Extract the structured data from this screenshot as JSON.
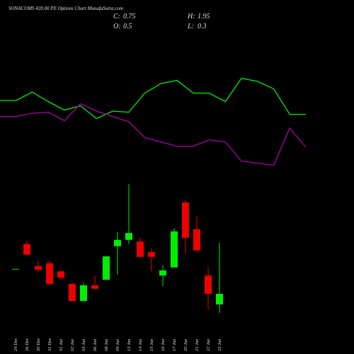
{
  "chart_data": [
    {
      "type": "line",
      "ylim": [
        0,
        100
      ],
      "series": [
        {
          "color": "#00ee00",
          "values": [
            72,
            72,
            80,
            71,
            63,
            67,
            55,
            62,
            61,
            79,
            88,
            91,
            79,
            79,
            71,
            93,
            90,
            83,
            59,
            59
          ]
        },
        {
          "color": "#aa00aa",
          "values": [
            57,
            57,
            60,
            61,
            53,
            69,
            62,
            57,
            52,
            37,
            33,
            29,
            29,
            35,
            33,
            15,
            13,
            11,
            46,
            28
          ]
        }
      ]
    },
    {
      "type": "candlestick",
      "title": "SONACOMS 420.00 PE Options Chart MunafaSutra.com",
      "ohlc_labels": [
        {
          "label": "C:",
          "value": 0.75
        },
        {
          "label": "H:",
          "value": 1.95
        },
        {
          "label": "O:",
          "value": 0.5
        },
        {
          "label": "L:",
          "value": 0.3
        }
      ],
      "categories": [
        "24 Dec",
        "26 Dec",
        "30 Dec",
        "31 Dec",
        "01 Jan",
        "02 Jan",
        "03 Jan",
        "06 Jan",
        "08 Jan",
        "09 Jan",
        "13 Jan",
        "14 Jan",
        "15 Jan",
        "16 Jan",
        "17 Jan",
        "20 Jan",
        "21 Jan",
        "22 Jan",
        "23 Jan"
      ],
      "open": [
        1.33,
        1.92,
        1.4,
        1.47,
        1.28,
        0.98,
        0.58,
        0.95,
        1.08,
        1.87,
        2.02,
        1.98,
        1.73,
        1.18,
        1.37,
        2.9,
        2.27,
        1.18,
        0.5
      ],
      "high": [
        1.33,
        2.0,
        1.53,
        1.53,
        1.28,
        1.03,
        1.0,
        1.17,
        1.63,
        2.2,
        3.33,
        2.07,
        1.83,
        1.42,
        2.3,
        2.97,
        2.57,
        1.38,
        1.95
      ],
      "low": [
        1.33,
        1.67,
        1.25,
        0.98,
        1.08,
        0.58,
        0.58,
        0.87,
        1.08,
        1.2,
        1.92,
        1.62,
        1.28,
        0.93,
        1.37,
        1.7,
        1.77,
        0.38,
        0.3
      ],
      "close": [
        1.33,
        1.67,
        1.32,
        0.98,
        1.13,
        0.58,
        0.95,
        0.87,
        1.63,
        2.02,
        2.18,
        1.62,
        1.62,
        1.3,
        2.22,
        2.07,
        1.77,
        0.75,
        0.75
      ],
      "up_color": "#00ee00",
      "down_color": "#ee0000",
      "flat_color": "#00ee00",
      "ylim": [
        0,
        3.8
      ]
    }
  ]
}
